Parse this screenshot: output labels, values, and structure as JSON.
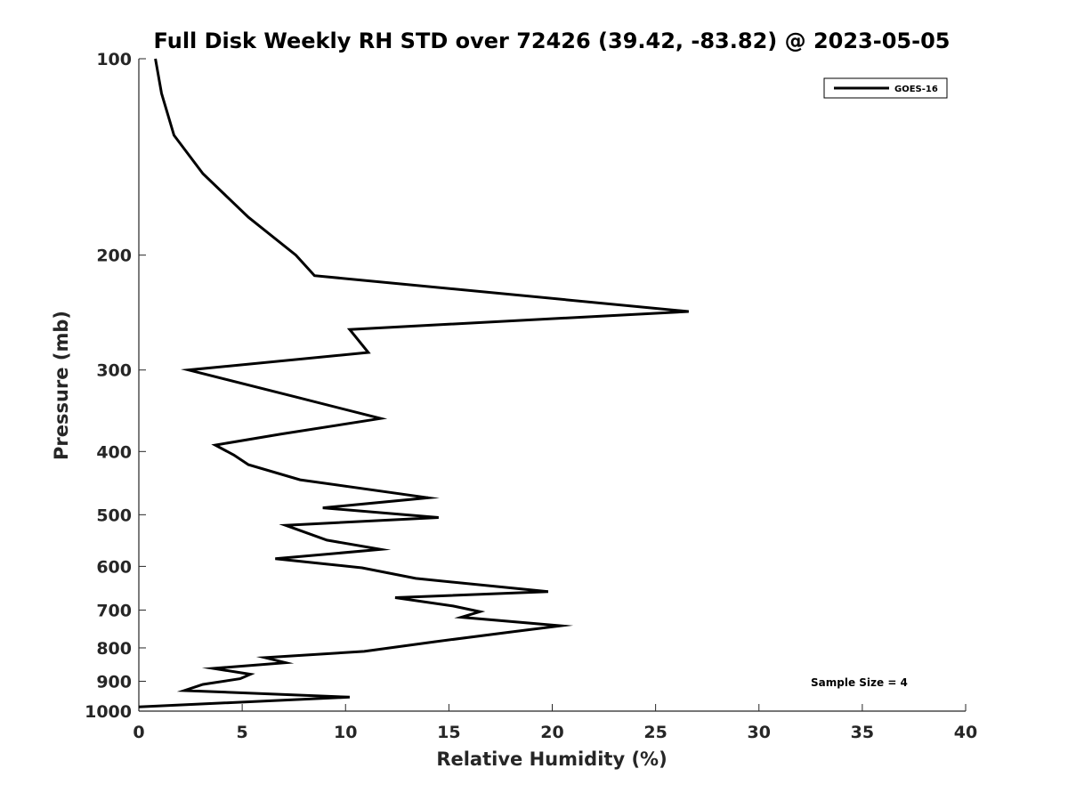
{
  "chart_data": {
    "type": "line",
    "title": "Full Disk Weekly RH STD over 72426 (39.42, -83.82) @ 2023-05-05",
    "xlabel": "Relative Humidity (%)",
    "ylabel": "Pressure (mb)",
    "xlim": [
      0,
      40
    ],
    "ylim": [
      100,
      1000
    ],
    "y_scale": "log",
    "y_reversed": true,
    "x_ticks": [
      0,
      5,
      10,
      15,
      20,
      25,
      30,
      35,
      40
    ],
    "y_ticks": [
      100,
      200,
      300,
      400,
      500,
      600,
      700,
      800,
      900,
      1000
    ],
    "grid": false,
    "legend_position": "top-right",
    "annotation": "Sample Size = 4",
    "series": [
      {
        "name": "GOES-16",
        "color": "#000000",
        "x": [
          0.8,
          1.1,
          1.7,
          3.1,
          5.3,
          7.6,
          8.5,
          26.6,
          10.2,
          11.1,
          2.4,
          7.6,
          11.7,
          6.9,
          3.7,
          4.6,
          5.3,
          7.8,
          14.0,
          8.9,
          14.5,
          7.1,
          9.1,
          11.7,
          6.6,
          10.8,
          13.4,
          19.8,
          12.4,
          15.2,
          16.5,
          15.6,
          20.4,
          18.2,
          14.3,
          10.9,
          6.1,
          7.1,
          3.6,
          5.4,
          4.9,
          3.1,
          2.2,
          10.2,
          0.0
        ],
        "y": [
          100,
          113,
          131,
          150,
          175,
          200,
          215,
          244,
          260,
          282,
          300,
          330,
          356,
          376,
          391,
          405,
          419,
          442,
          471,
          488,
          505,
          519,
          547,
          565,
          584,
          603,
          626,
          656,
          670,
          690,
          704,
          718,
          740,
          755,
          783,
          810,
          828,
          843,
          860,
          878,
          892,
          910,
          930,
          952,
          985
        ]
      }
    ]
  }
}
